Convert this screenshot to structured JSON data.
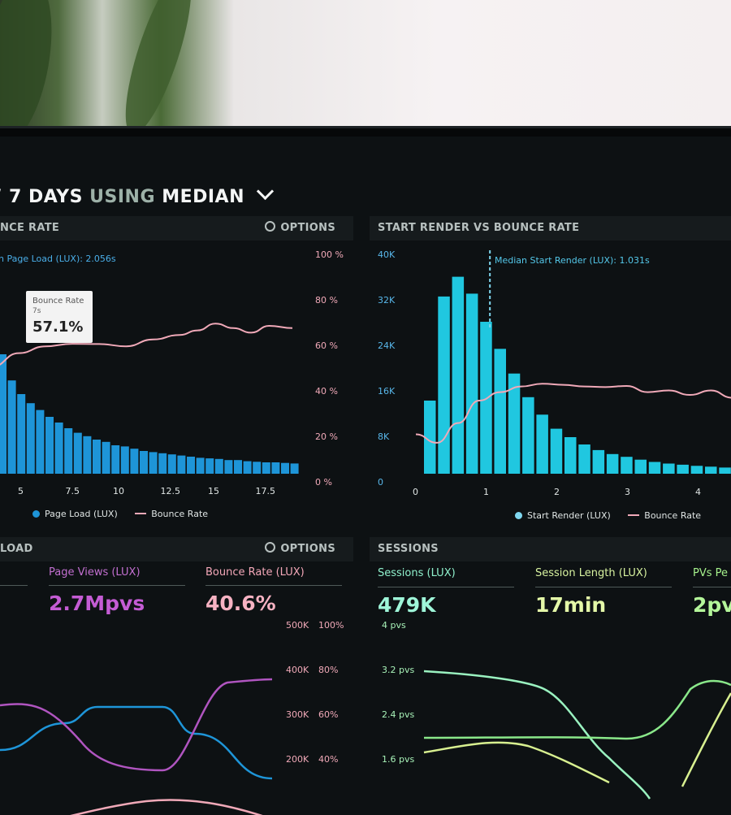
{
  "header": {
    "title_prefix": "7 DAYS",
    "title_mid": "USING",
    "title_suffix": "MEDIAN"
  },
  "panels": {
    "bounce": {
      "title": "NCE RATE",
      "options_label": "OPTIONS",
      "median_note": "n Page Load (LUX): 2.056s",
      "tooltip": {
        "label": "Bounce Rate",
        "sub": "7s",
        "value": "57.1%"
      },
      "y_right_ticks": [
        "100 %",
        "80 %",
        "60 %",
        "40 %",
        "20 %",
        "0 %"
      ],
      "x_ticks": [
        "5",
        "7.5",
        "10",
        "12.5",
        "15",
        "17.5"
      ],
      "legend": {
        "a": "Page Load (LUX)",
        "b": "Bounce Rate"
      }
    },
    "render": {
      "title": "START RENDER VS BOUNCE RATE",
      "median_note": "Median Start Render (LUX): 1.031s",
      "y_left_ticks": [
        "40K",
        "32K",
        "24K",
        "16K",
        "8K",
        "0"
      ],
      "x_ticks": [
        "0",
        "1",
        "2",
        "3",
        "4"
      ],
      "legend": {
        "a": "Start Render (LUX)",
        "b": "Bounce Rate"
      }
    },
    "load": {
      "title": "LOAD",
      "options_label": "OPTIONS",
      "metrics": [
        {
          "label": "Page Views (LUX)",
          "value": "2.7Mpvs"
        },
        {
          "label": "Bounce Rate (LUX)",
          "value": "40.6%"
        }
      ],
      "y_mid_ticks": [
        "500K",
        "400K",
        "300K",
        "200K"
      ],
      "y_right_ticks": [
        "100%",
        "80%",
        "60%",
        "40%"
      ]
    },
    "sessions": {
      "title": "SESSIONS",
      "metrics": [
        {
          "label": "Sessions (LUX)",
          "value": "479K"
        },
        {
          "label": "Session Length (LUX)",
          "value": "17min"
        },
        {
          "label": "PVs Pe",
          "value": "2pv"
        }
      ],
      "y_ticks": [
        "4 pvs",
        "3.2 pvs",
        "2.4 pvs",
        "1.6 pvs"
      ]
    }
  },
  "colors": {
    "pink": "#f0a9b8",
    "blue": "#1e95d8",
    "cyan": "#20c7e0",
    "purple": "#b055c0",
    "green": "#7ef0a8",
    "lime": "#d8f090"
  },
  "chart_data": [
    {
      "type": "bar",
      "title": "",
      "xlabel": "",
      "ylabel": "",
      "series": [
        {
          "name": "Page Load (LUX)",
          "values": [
            10.5,
            8.2,
            7.0,
            6.2,
            5.6,
            5.0,
            4.5,
            4.0,
            3.6,
            3.3,
            3.0,
            2.8,
            2.5,
            2.4,
            2.2,
            2.0,
            1.9,
            1.8,
            1.7,
            1.6,
            1.5,
            1.4,
            1.35,
            1.3,
            1.2,
            1.2,
            1.1,
            1.05,
            1.0,
            1.0,
            0.95,
            0.9
          ]
        },
        {
          "name": "Bounce Rate",
          "x": [
            2.5,
            4,
            5.5,
            7,
            8.5,
            10,
            11.5,
            13,
            14,
            15,
            16,
            17,
            18,
            19.3
          ],
          "values": [
            47,
            53,
            56,
            57.1,
            57,
            56,
            59,
            61,
            63,
            66,
            64,
            62,
            65,
            64
          ]
        }
      ]
    },
    {
      "type": "bar",
      "title": "",
      "xlabel": "",
      "ylabel": "",
      "ylim": [
        0,
        40000
      ],
      "series": [
        {
          "name": "Start Render (LUX)",
          "x": [
            0.1,
            0.3,
            0.5,
            0.7,
            0.9,
            1.1,
            1.3,
            1.5,
            1.7,
            1.9,
            2.1,
            2.3,
            2.5,
            2.7,
            2.9,
            3.1,
            3.3,
            3.5,
            3.7,
            3.9,
            4.1,
            4.3,
            4.5
          ],
          "values": [
            13000,
            31500,
            35000,
            32000,
            27000,
            22200,
            17800,
            13600,
            10500,
            8000,
            6500,
            5200,
            4200,
            3500,
            3000,
            2500,
            2100,
            1800,
            1600,
            1400,
            1250,
            1100,
            1000
          ]
        },
        {
          "name": "Bounce Rate",
          "x": [
            0,
            0.3,
            0.6,
            0.9,
            1.2,
            1.5,
            1.8,
            2.1,
            2.4,
            2.7,
            3.0,
            3.3,
            3.6,
            3.9,
            4.2,
            4.5
          ],
          "values": [
            7,
            5.5,
            9,
            13,
            14.5,
            15.5,
            16,
            15.8,
            15.5,
            15.4,
            15.6,
            14.5,
            14.8,
            14,
            14.8,
            13.5
          ]
        }
      ]
    }
  ]
}
